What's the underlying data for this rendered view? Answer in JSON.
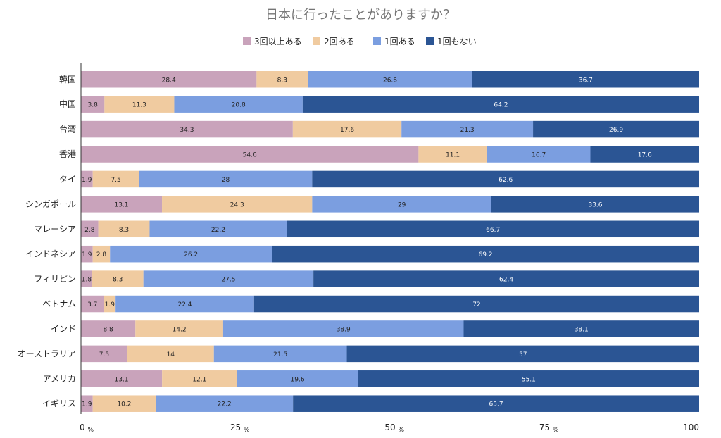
{
  "chart_data": {
    "type": "bar",
    "orientation": "horizontal",
    "stacked": "percent",
    "title": "日本に行ったことがありますか？",
    "legend_position": "top",
    "categories": [
      "韓国",
      "中国",
      "台湾",
      "香港",
      "タイ",
      "シンガポール",
      "マレーシア",
      "インドネシア",
      "フィリピン",
      "ベトナム",
      "インド",
      "オーストラリア",
      "アメリカ",
      "イギリス"
    ],
    "series": [
      {
        "name": "3回以上ある",
        "color": "#c9a3bb",
        "label_color": "#222222",
        "values": [
          28.4,
          3.8,
          34.3,
          54.6,
          1.9,
          13.1,
          2.8,
          1.9,
          1.8,
          3.7,
          8.8,
          7.5,
          13.1,
          1.9
        ]
      },
      {
        "name": "2回ある",
        "color": "#f0cba0",
        "label_color": "#222222",
        "values": [
          8.3,
          11.3,
          17.6,
          11.1,
          7.5,
          24.3,
          8.3,
          2.8,
          8.3,
          1.9,
          14.2,
          14,
          12.1,
          10.2
        ]
      },
      {
        "name": "1回ある",
        "color": "#7b9ee0",
        "label_color": "#222222",
        "values": [
          26.6,
          20.8,
          21.3,
          16.7,
          28,
          29,
          22.2,
          26.2,
          27.5,
          22.4,
          38.9,
          21.5,
          19.6,
          22.2
        ]
      },
      {
        "name": "1回もない",
        "color": "#2b5594",
        "label_color": "#ffffff",
        "values": [
          36.7,
          64.2,
          26.9,
          17.6,
          62.6,
          33.6,
          66.7,
          69.2,
          62.4,
          72,
          38.1,
          57,
          55.1,
          65.7
        ]
      }
    ],
    "xlim": [
      0,
      100
    ],
    "x_ticks": [
      0,
      25,
      50,
      75,
      100
    ],
    "x_tick_unit": "%",
    "grid": false
  }
}
